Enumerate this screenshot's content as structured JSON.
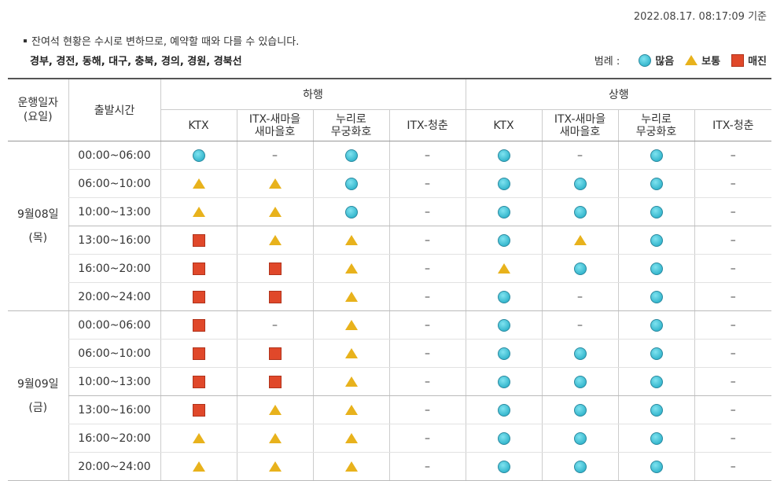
{
  "timestamp": "2022.08.17. 08:17:09 기준",
  "notice": "잔여석 현황은 수시로 변하므로, 예약할 때와 다를 수 있습니다.",
  "lines": "경부, 경전, 동해, 대구, 충북, 경의, 경원, 경북선",
  "legend": {
    "label": "범례 :",
    "items": [
      {
        "icon": "circle-icon",
        "label": "많음"
      },
      {
        "icon": "triangle-icon",
        "label": "보통"
      },
      {
        "icon": "square-icon",
        "label": "매진"
      }
    ]
  },
  "table": {
    "col_date": "운행일자\n(요일)",
    "col_time": "출발시간",
    "group_down": "하행",
    "group_up": "상행",
    "trains": [
      "KTX",
      "ITX-새마을\n새마을호",
      "누리로\n무궁화호",
      "ITX-청춘"
    ],
    "dash": "–",
    "days": [
      {
        "date": "9월08일\n(목)",
        "rows": [
          {
            "time": "00:00~06:00",
            "cells": [
              "C",
              "-",
              "C",
              "-",
              "C",
              "-",
              "C",
              "-"
            ]
          },
          {
            "time": "06:00~10:00",
            "cells": [
              "T",
              "T",
              "C",
              "-",
              "C",
              "C",
              "C",
              "-"
            ]
          },
          {
            "time": "10:00~13:00",
            "cells": [
              "T",
              "T",
              "C",
              "-",
              "C",
              "C",
              "C",
              "-"
            ]
          },
          {
            "time": "13:00~16:00",
            "cells": [
              "S",
              "T",
              "T",
              "-",
              "C",
              "T",
              "C",
              "-"
            ]
          },
          {
            "time": "16:00~20:00",
            "cells": [
              "S",
              "S",
              "T",
              "-",
              "T",
              "C",
              "C",
              "-"
            ]
          },
          {
            "time": "20:00~24:00",
            "cells": [
              "S",
              "S",
              "T",
              "-",
              "C",
              "-",
              "C",
              "-"
            ]
          }
        ]
      },
      {
        "date": "9월09일\n(금)",
        "rows": [
          {
            "time": "00:00~06:00",
            "cells": [
              "S",
              "-",
              "T",
              "-",
              "C",
              "-",
              "C",
              "-"
            ]
          },
          {
            "time": "06:00~10:00",
            "cells": [
              "S",
              "S",
              "T",
              "-",
              "C",
              "C",
              "C",
              "-"
            ]
          },
          {
            "time": "10:00~13:00",
            "cells": [
              "S",
              "S",
              "T",
              "-",
              "C",
              "C",
              "C",
              "-"
            ]
          },
          {
            "time": "13:00~16:00",
            "cells": [
              "S",
              "T",
              "T",
              "-",
              "C",
              "C",
              "C",
              "-"
            ]
          },
          {
            "time": "16:00~20:00",
            "cells": [
              "T",
              "T",
              "T",
              "-",
              "C",
              "C",
              "C",
              "-"
            ]
          },
          {
            "time": "20:00~24:00",
            "cells": [
              "T",
              "T",
              "T",
              "-",
              "C",
              "C",
              "C",
              "-"
            ]
          }
        ]
      }
    ]
  }
}
